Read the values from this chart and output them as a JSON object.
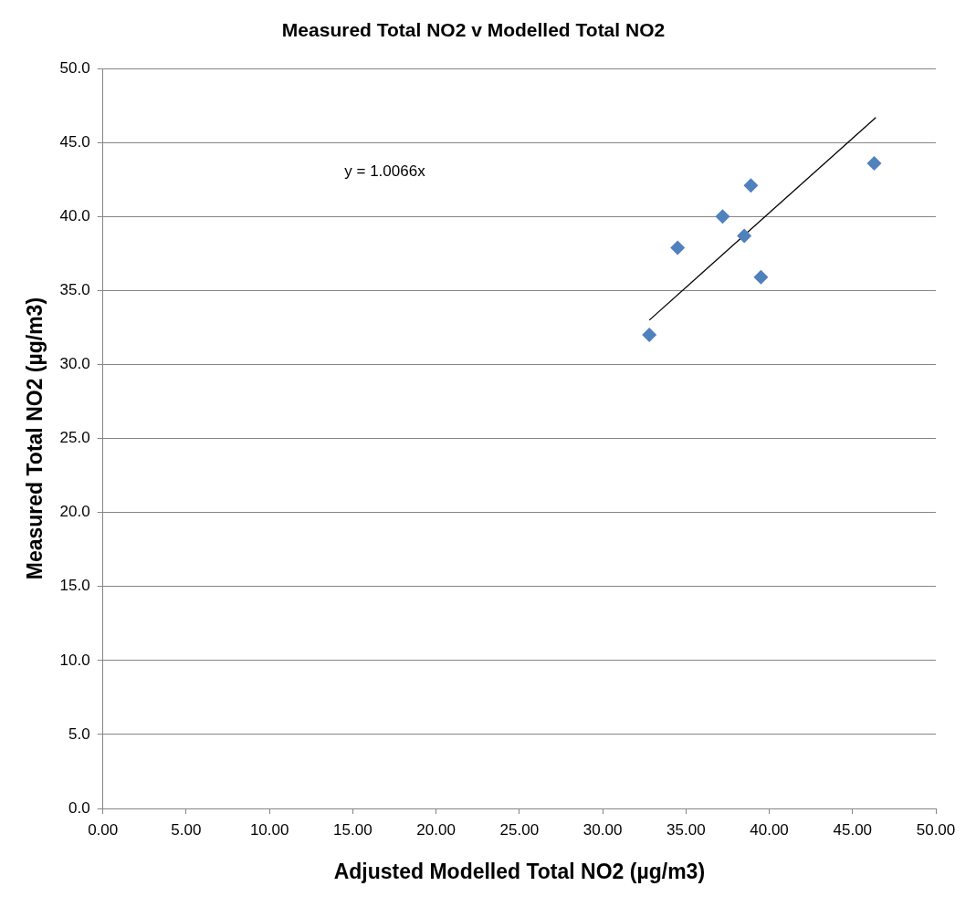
{
  "chart_data": {
    "type": "scatter",
    "title": "Measured Total NO2 v Modelled Total NO2",
    "xlabel": "Adjusted Modelled Total NO2 (µg/m3)",
    "ylabel": "Measured Total NO2 (µg/m3)",
    "series": [
      {
        "color": "#4f81bd",
        "marker": "diamond",
        "x": [
          32.8,
          34.5,
          37.2,
          38.5,
          38.9,
          39.5,
          46.3
        ],
        "values": [
          32.0,
          37.9,
          40.0,
          38.7,
          42.1,
          35.9,
          43.6
        ]
      },
      {
        "type": "line",
        "color": "#000000",
        "marker": "none",
        "x": [
          32.8,
          46.4
        ],
        "values": [
          33.0,
          46.7
        ]
      }
    ],
    "annotations": [
      "y = 1.0066x"
    ],
    "xlim": [
      0,
      50
    ],
    "ylim": [
      0,
      50
    ],
    "xticks": [
      {
        "value": 0,
        "label": "0.00"
      },
      {
        "value": 5,
        "label": "5.00"
      },
      {
        "value": 10,
        "label": "10.00"
      },
      {
        "value": 15,
        "label": "15.00"
      },
      {
        "value": 20,
        "label": "20.00"
      },
      {
        "value": 25,
        "label": "25.00"
      },
      {
        "value": 30,
        "label": "30.00"
      },
      {
        "value": 35,
        "label": "35.00"
      },
      {
        "value": 40,
        "label": "40.00"
      },
      {
        "value": 45,
        "label": "45.00"
      },
      {
        "value": 50,
        "label": "50.00"
      }
    ],
    "yticks": [
      {
        "value": 0,
        "label": "0.0"
      },
      {
        "value": 5,
        "label": "5.0"
      },
      {
        "value": 10,
        "label": "10.0"
      },
      {
        "value": 15,
        "label": "15.0"
      },
      {
        "value": 20,
        "label": "20.0"
      },
      {
        "value": 25,
        "label": "25.0"
      },
      {
        "value": 30,
        "label": "30.0"
      },
      {
        "value": 35,
        "label": "35.0"
      },
      {
        "value": 40,
        "label": "40.0"
      },
      {
        "value": 45,
        "label": "45.0"
      },
      {
        "value": 50,
        "label": "50.0"
      }
    ],
    "grid": "y",
    "legend": false
  }
}
